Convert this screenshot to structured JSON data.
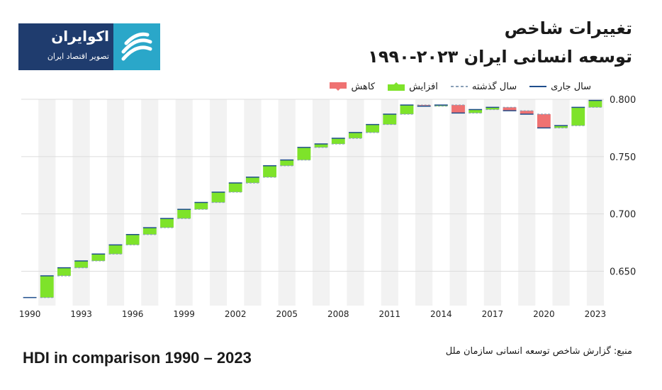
{
  "header": {
    "title_line1": "تغییرات شاخص",
    "title_line2": "توسعه انسانی ایران ۲۰۲۳-۱۹۹۰"
  },
  "logo": {
    "name": "اکوایران",
    "tagline": "تصویر اقتصاد ایران",
    "mark_color": "#2aa7c9",
    "bg_color": "#1f3c6e"
  },
  "legend": {
    "current_year": "سال جاری",
    "previous_year": "سال گذشته",
    "increase": "افزایش",
    "decrease": "کاهش"
  },
  "footer": {
    "caption": "HDI in comparison 1990 – 2023",
    "source": "منبع: گزارش شاخص توسعه انسانی سازمان ملل"
  },
  "colors": {
    "increase": "#7ee32a",
    "decrease": "#ef7272",
    "current_line": "#1f4e8c",
    "previous_line": "#8aa0b8",
    "band": "#f2f2f2"
  },
  "chart_data": {
    "type": "waterfall",
    "x": [
      1990,
      1991,
      1992,
      1993,
      1994,
      1995,
      1996,
      1997,
      1998,
      1999,
      2000,
      2001,
      2002,
      2003,
      2004,
      2005,
      2006,
      2007,
      2008,
      2009,
      2010,
      2011,
      2012,
      2013,
      2014,
      2015,
      2016,
      2017,
      2018,
      2019,
      2020,
      2021,
      2022,
      2023
    ],
    "values": [
      0.627,
      0.646,
      0.653,
      0.659,
      0.665,
      0.673,
      0.682,
      0.688,
      0.696,
      0.704,
      0.71,
      0.719,
      0.727,
      0.732,
      0.742,
      0.747,
      0.758,
      0.761,
      0.766,
      0.771,
      0.778,
      0.787,
      0.795,
      0.794,
      0.795,
      0.788,
      0.791,
      0.793,
      0.79,
      0.787,
      0.775,
      0.777,
      0.793,
      0.799
    ],
    "x_ticks": [
      "1990",
      "1993",
      "1996",
      "1999",
      "2002",
      "2005",
      "2008",
      "2011",
      "2014",
      "2017",
      "2020",
      "2023"
    ],
    "y_ticks": [
      "0.650",
      "0.700",
      "0.750",
      "0.800"
    ],
    "ylim": [
      0.62,
      0.8
    ],
    "axis_side": "right",
    "grid": true,
    "legend_position": "top"
  }
}
